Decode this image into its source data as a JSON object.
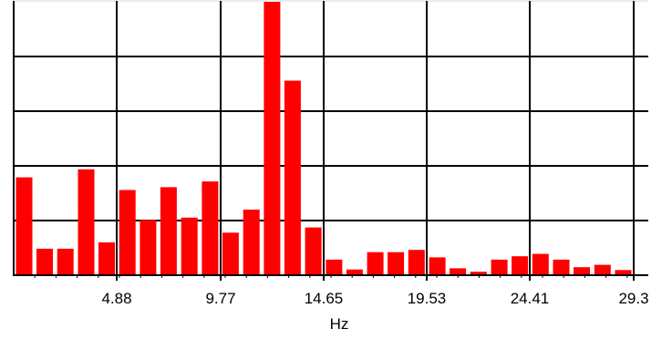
{
  "chart_data": {
    "type": "bar",
    "title": "",
    "xlabel": "Hz",
    "ylabel": "",
    "x_tick_labels": [
      "4.88",
      "9.77",
      "14.65",
      "19.53",
      "24.41",
      "29.3"
    ],
    "x_tick_values": [
      4.88,
      9.77,
      14.65,
      19.53,
      24.41,
      29.3
    ],
    "xlim": [
      0,
      30
    ],
    "ylim": [
      0,
      4.75
    ],
    "grid": true,
    "bar_color": "#ff0000",
    "series": [
      {
        "x": [
          0.98,
          1.95,
          2.93,
          3.91,
          4.88,
          5.86,
          6.84,
          7.81,
          8.79,
          9.77,
          10.74,
          11.72,
          12.7,
          13.67,
          14.65,
          15.63,
          16.6,
          17.58,
          18.55,
          19.53,
          20.51,
          21.48,
          22.46,
          23.44,
          24.41,
          25.39,
          26.37,
          27.34,
          28.32,
          29.3
        ],
        "values": [
          1.7,
          0.46,
          0.46,
          1.84,
          0.57,
          1.48,
          0.96,
          1.53,
          1.0,
          1.63,
          0.74,
          1.14,
          4.75,
          3.38,
          0.83,
          0.27,
          0.1,
          0.4,
          0.4,
          0.44,
          0.31,
          0.12,
          0.06,
          0.27,
          0.33,
          0.37,
          0.27,
          0.14,
          0.18,
          0.09
        ]
      }
    ]
  }
}
